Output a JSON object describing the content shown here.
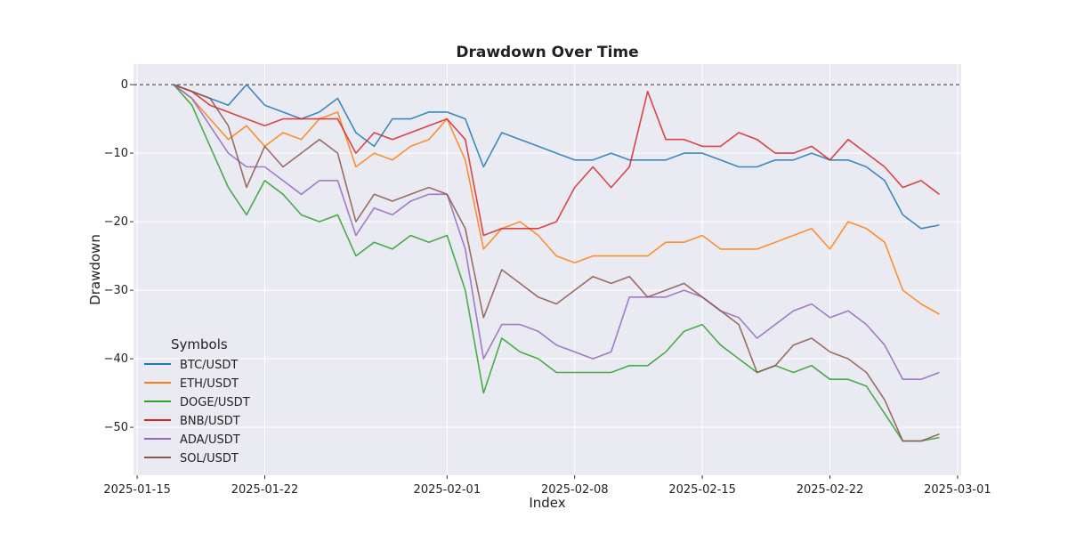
{
  "chart_data": {
    "type": "line",
    "title": "Drawdown Over Time",
    "xlabel": "Index",
    "ylabel": "Drawdown",
    "x_ticks": [
      "2025-01-15",
      "2025-01-22",
      "2025-02-01",
      "2025-02-08",
      "2025-02-15",
      "2025-02-22",
      "2025-03-01"
    ],
    "xlim": [
      "2025-01-15",
      "2025-03-01"
    ],
    "y_ticks": [
      0,
      -10,
      -20,
      -30,
      -40,
      -50
    ],
    "ylim": [
      -57,
      3
    ],
    "grid": true,
    "reference_line": {
      "y": 0,
      "style": "dashed"
    },
    "legend": {
      "title": "Symbols",
      "location": "lower-left"
    },
    "series": [
      {
        "name": "BTC/USDT",
        "color": "#1f77b4",
        "x": [
          "2025-01-17",
          "2025-01-18",
          "2025-01-19",
          "2025-01-20",
          "2025-01-21",
          "2025-01-22",
          "2025-01-23",
          "2025-01-24",
          "2025-01-25",
          "2025-01-26",
          "2025-01-27",
          "2025-01-28",
          "2025-01-29",
          "2025-01-30",
          "2025-01-31",
          "2025-02-01",
          "2025-02-02",
          "2025-02-03",
          "2025-02-04",
          "2025-02-05",
          "2025-02-06",
          "2025-02-07",
          "2025-02-08",
          "2025-02-09",
          "2025-02-10",
          "2025-02-11",
          "2025-02-12",
          "2025-02-13",
          "2025-02-14",
          "2025-02-15",
          "2025-02-16",
          "2025-02-17",
          "2025-02-18",
          "2025-02-19",
          "2025-02-20",
          "2025-02-21",
          "2025-02-22",
          "2025-02-23",
          "2025-02-24",
          "2025-02-25",
          "2025-02-26",
          "2025-02-27",
          "2025-02-28"
        ],
        "y": [
          0,
          -1,
          -2,
          -3,
          0,
          -3,
          -4,
          -5,
          -4,
          -2,
          -7,
          -9,
          -5,
          -5,
          -4,
          -4,
          -5,
          -12,
          -7,
          -8,
          -9,
          -10,
          -11,
          -11,
          -10,
          -11,
          -11,
          -11,
          -10,
          -10,
          -11,
          -12,
          -12,
          -11,
          -11,
          -10,
          -11,
          -11,
          -12,
          -14,
          -19,
          -21,
          -20.5
        ]
      },
      {
        "name": "ETH/USDT",
        "color": "#ff7f0e",
        "x": [
          "2025-01-17",
          "2025-01-18",
          "2025-01-19",
          "2025-01-20",
          "2025-01-21",
          "2025-01-22",
          "2025-01-23",
          "2025-01-24",
          "2025-01-25",
          "2025-01-26",
          "2025-01-27",
          "2025-01-28",
          "2025-01-29",
          "2025-01-30",
          "2025-01-31",
          "2025-02-01",
          "2025-02-02",
          "2025-02-03",
          "2025-02-04",
          "2025-02-05",
          "2025-02-06",
          "2025-02-07",
          "2025-02-08",
          "2025-02-09",
          "2025-02-10",
          "2025-02-11",
          "2025-02-12",
          "2025-02-13",
          "2025-02-14",
          "2025-02-15",
          "2025-02-16",
          "2025-02-17",
          "2025-02-18",
          "2025-02-19",
          "2025-02-20",
          "2025-02-21",
          "2025-02-22",
          "2025-02-23",
          "2025-02-24",
          "2025-02-25",
          "2025-02-26",
          "2025-02-27",
          "2025-02-28"
        ],
        "y": [
          0,
          -2,
          -5,
          -8,
          -6,
          -9,
          -7,
          -8,
          -5,
          -4,
          -12,
          -10,
          -11,
          -9,
          -8,
          -5,
          -11,
          -24,
          -21,
          -20,
          -22,
          -25,
          -26,
          -25,
          -25,
          -25,
          -25,
          -23,
          -23,
          -22,
          -24,
          -24,
          -24,
          -23,
          -22,
          -21,
          -24,
          -20,
          -21,
          -23,
          -30,
          -32,
          -33.5
        ]
      },
      {
        "name": "DOGE/USDT",
        "color": "#2ca02c",
        "x": [
          "2025-01-17",
          "2025-01-18",
          "2025-01-19",
          "2025-01-20",
          "2025-01-21",
          "2025-01-22",
          "2025-01-23",
          "2025-01-24",
          "2025-01-25",
          "2025-01-26",
          "2025-01-27",
          "2025-01-28",
          "2025-01-29",
          "2025-01-30",
          "2025-01-31",
          "2025-02-01",
          "2025-02-02",
          "2025-02-03",
          "2025-02-04",
          "2025-02-05",
          "2025-02-06",
          "2025-02-07",
          "2025-02-08",
          "2025-02-09",
          "2025-02-10",
          "2025-02-11",
          "2025-02-12",
          "2025-02-13",
          "2025-02-14",
          "2025-02-15",
          "2025-02-16",
          "2025-02-17",
          "2025-02-18",
          "2025-02-19",
          "2025-02-20",
          "2025-02-21",
          "2025-02-22",
          "2025-02-23",
          "2025-02-24",
          "2025-02-25",
          "2025-02-26",
          "2025-02-27",
          "2025-02-28"
        ],
        "y": [
          0,
          -3,
          -9,
          -15,
          -19,
          -14,
          -16,
          -19,
          -20,
          -19,
          -25,
          -23,
          -24,
          -22,
          -23,
          -22,
          -30,
          -45,
          -37,
          -39,
          -40,
          -42,
          -42,
          -42,
          -42,
          -41,
          -41,
          -39,
          -36,
          -35,
          -38,
          -40,
          -42,
          -41,
          -42,
          -41,
          -43,
          -43,
          -44,
          -48,
          -52,
          -52,
          -51.5
        ]
      },
      {
        "name": "BNB/USDT",
        "color": "#d62728",
        "x": [
          "2025-01-17",
          "2025-01-18",
          "2025-01-19",
          "2025-01-20",
          "2025-01-21",
          "2025-01-22",
          "2025-01-23",
          "2025-01-24",
          "2025-01-25",
          "2025-01-26",
          "2025-01-27",
          "2025-01-28",
          "2025-01-29",
          "2025-01-30",
          "2025-01-31",
          "2025-02-01",
          "2025-02-02",
          "2025-02-03",
          "2025-02-04",
          "2025-02-05",
          "2025-02-06",
          "2025-02-07",
          "2025-02-08",
          "2025-02-09",
          "2025-02-10",
          "2025-02-11",
          "2025-02-12",
          "2025-02-13",
          "2025-02-14",
          "2025-02-15",
          "2025-02-16",
          "2025-02-17",
          "2025-02-18",
          "2025-02-19",
          "2025-02-20",
          "2025-02-21",
          "2025-02-22",
          "2025-02-23",
          "2025-02-24",
          "2025-02-25",
          "2025-02-26",
          "2025-02-27",
          "2025-02-28"
        ],
        "y": [
          0,
          -1,
          -3,
          -4,
          -5,
          -6,
          -5,
          -5,
          -5,
          -5,
          -10,
          -7,
          -8,
          -7,
          -6,
          -5,
          -8,
          -22,
          -21,
          -21,
          -21,
          -20,
          -15,
          -12,
          -15,
          -12,
          -1,
          -8,
          -8,
          -9,
          -9,
          -7,
          -8,
          -10,
          -10,
          -9,
          -11,
          -8,
          -10,
          -12,
          -15,
          -14,
          -16
        ]
      },
      {
        "name": "ADA/USDT",
        "color": "#9467bd",
        "x": [
          "2025-01-17",
          "2025-01-18",
          "2025-01-19",
          "2025-01-20",
          "2025-01-21",
          "2025-01-22",
          "2025-01-23",
          "2025-01-24",
          "2025-01-25",
          "2025-01-26",
          "2025-01-27",
          "2025-01-28",
          "2025-01-29",
          "2025-01-30",
          "2025-01-31",
          "2025-02-01",
          "2025-02-02",
          "2025-02-03",
          "2025-02-04",
          "2025-02-05",
          "2025-02-06",
          "2025-02-07",
          "2025-02-08",
          "2025-02-09",
          "2025-02-10",
          "2025-02-11",
          "2025-02-12",
          "2025-02-13",
          "2025-02-14",
          "2025-02-15",
          "2025-02-16",
          "2025-02-17",
          "2025-02-18",
          "2025-02-19",
          "2025-02-20",
          "2025-02-21",
          "2025-02-22",
          "2025-02-23",
          "2025-02-24",
          "2025-02-25",
          "2025-02-26",
          "2025-02-27",
          "2025-02-28"
        ],
        "y": [
          0,
          -2,
          -6,
          -10,
          -12,
          -12,
          -14,
          -16,
          -14,
          -14,
          -22,
          -18,
          -19,
          -17,
          -16,
          -16,
          -24,
          -40,
          -35,
          -35,
          -36,
          -38,
          -39,
          -40,
          -39,
          -31,
          -31,
          -31,
          -30,
          -31,
          -33,
          -34,
          -37,
          -35,
          -33,
          -32,
          -34,
          -33,
          -35,
          -38,
          -43,
          -43,
          -42
        ]
      },
      {
        "name": "SOL/USDT",
        "color": "#8c564b",
        "x": [
          "2025-01-17",
          "2025-01-18",
          "2025-01-19",
          "2025-01-20",
          "2025-01-21",
          "2025-01-22",
          "2025-01-23",
          "2025-01-24",
          "2025-01-25",
          "2025-01-26",
          "2025-01-27",
          "2025-01-28",
          "2025-01-29",
          "2025-01-30",
          "2025-01-31",
          "2025-02-01",
          "2025-02-02",
          "2025-02-03",
          "2025-02-04",
          "2025-02-05",
          "2025-02-06",
          "2025-02-07",
          "2025-02-08",
          "2025-02-09",
          "2025-02-10",
          "2025-02-11",
          "2025-02-12",
          "2025-02-13",
          "2025-02-14",
          "2025-02-15",
          "2025-02-16",
          "2025-02-17",
          "2025-02-18",
          "2025-02-19",
          "2025-02-20",
          "2025-02-21",
          "2025-02-22",
          "2025-02-23",
          "2025-02-24",
          "2025-02-25",
          "2025-02-26",
          "2025-02-27",
          "2025-02-28"
        ],
        "y": [
          0,
          -1,
          -2,
          -6,
          -15,
          -9,
          -12,
          -10,
          -8,
          -10,
          -20,
          -16,
          -17,
          -16,
          -15,
          -16,
          -21,
          -34,
          -27,
          -29,
          -31,
          -32,
          -30,
          -28,
          -29,
          -28,
          -31,
          -30,
          -29,
          -31,
          -33,
          -35,
          -42,
          -41,
          -38,
          -37,
          -39,
          -40,
          -42,
          -46,
          -52,
          -52,
          -51
        ]
      }
    ]
  }
}
